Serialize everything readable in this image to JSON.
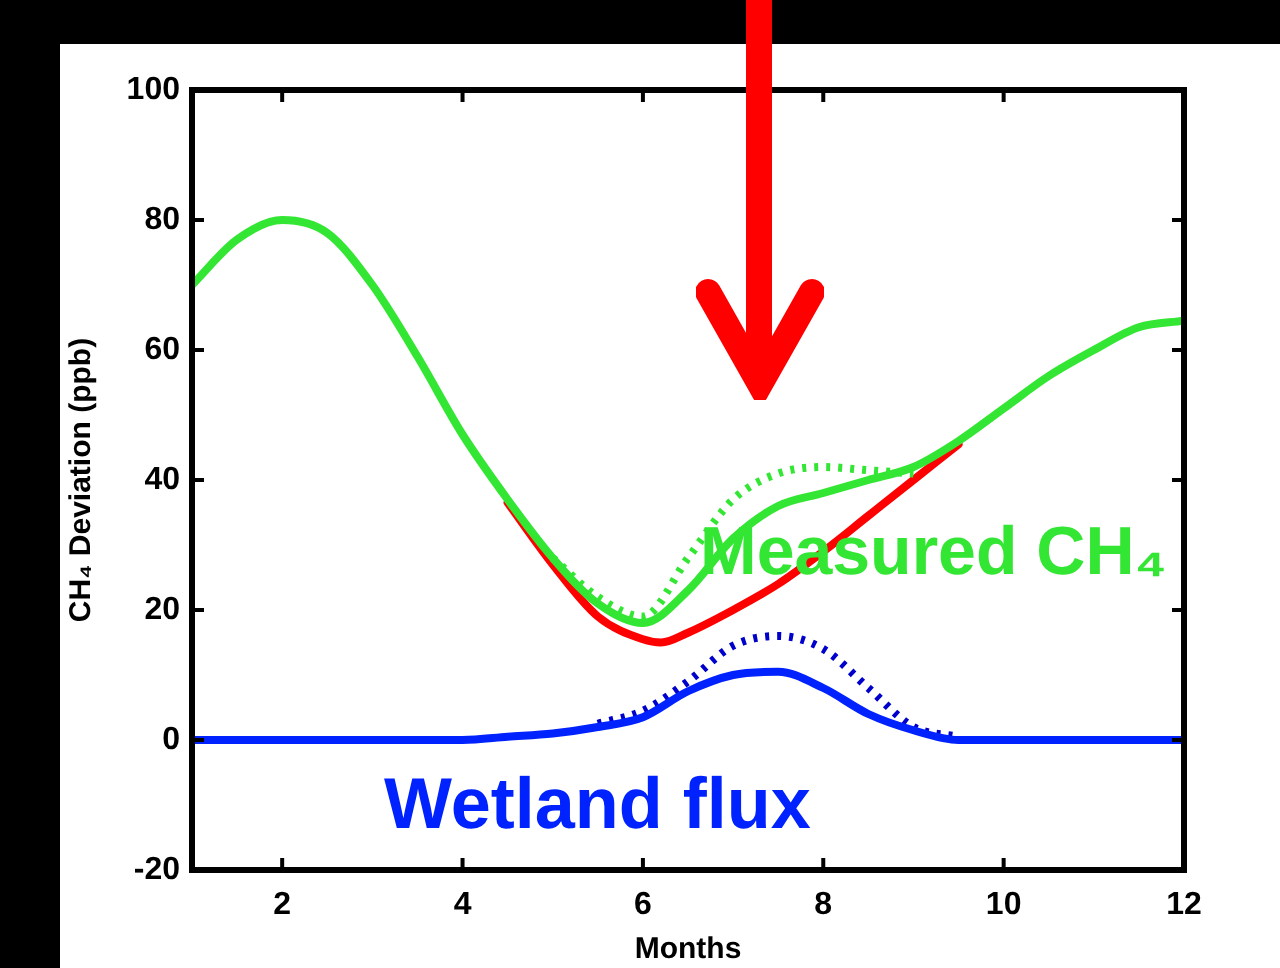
{
  "chart_data": {
    "type": "line",
    "xlabel": "Months",
    "ylabel": "CH₄ Deviation (ppb)",
    "xlim": [
      1,
      12
    ],
    "ylim": [
      -20,
      100
    ],
    "xticks": [
      2,
      4,
      6,
      8,
      10,
      12
    ],
    "yticks": [
      -20,
      0,
      20,
      40,
      60,
      80,
      100
    ],
    "grid": false,
    "legend": false,
    "marker": "none",
    "series": [
      {
        "color": "#ff0000",
        "line_style": "solid",
        "x": [
          4.5,
          5,
          5.5,
          6,
          6.2,
          6.5,
          7,
          7.5,
          8,
          8.5,
          9,
          9.5
        ],
        "values": [
          36.5,
          27,
          19,
          15.5,
          15,
          16.5,
          20,
          24,
          29,
          34.5,
          40,
          45.5
        ]
      },
      {
        "color": "#33e633",
        "line_style": "dotted",
        "x": [
          5,
          5.5,
          6,
          6.5,
          7,
          7.5,
          8,
          8.5,
          9
        ],
        "values": [
          28,
          22,
          19,
          28,
          37,
          41,
          42,
          41.5,
          41
        ]
      },
      {
        "name": "Measured CH₄",
        "color": "#33e633",
        "line_style": "solid",
        "x": [
          1,
          1.5,
          2,
          2.5,
          3,
          3.5,
          4,
          4.5,
          5,
          5.5,
          6,
          6.5,
          7,
          7.5,
          8,
          8.5,
          9,
          9.5,
          10,
          10.5,
          11,
          11.5,
          12
        ],
        "values": [
          70,
          77,
          80,
          78,
          70,
          59,
          47,
          37,
          28,
          21,
          18,
          23,
          31,
          36,
          38,
          40,
          42,
          46,
          51,
          56,
          60,
          63.5,
          64.5
        ]
      },
      {
        "color": "#0000cc",
        "line_style": "dotted",
        "x": [
          5.5,
          6,
          6.5,
          7,
          7.5,
          8,
          8.5,
          9,
          9.5
        ],
        "values": [
          2.5,
          4.5,
          9,
          14.5,
          16,
          14,
          8,
          2,
          0.5
        ]
      },
      {
        "name": "Wetland flux",
        "color": "#0022ff",
        "line_style": "solid",
        "x": [
          1,
          2,
          3,
          4,
          4.5,
          5,
          5.5,
          6,
          6.5,
          7,
          7.5,
          8,
          8.5,
          9,
          9.5,
          10,
          11,
          12
        ],
        "values": [
          0,
          0,
          0,
          0,
          0.5,
          1,
          2,
          3.5,
          7.5,
          10,
          10.5,
          8,
          4,
          1.5,
          0,
          0,
          0,
          0
        ]
      }
    ]
  }
}
